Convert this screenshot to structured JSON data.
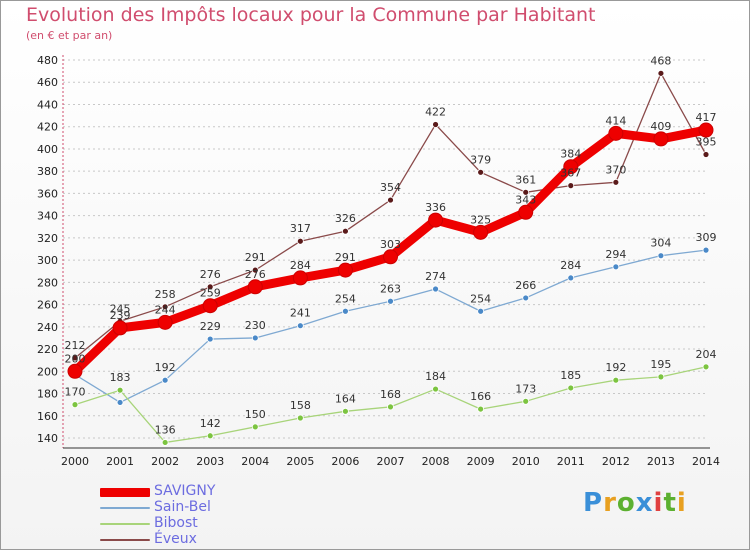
{
  "title": "Evolution des Impôts locaux pour la Commune par Habitant",
  "subtitle": "(en € et par an)",
  "logo_text": "Proxiti",
  "logo_colors": [
    "#3a8fd8",
    "#e8a020",
    "#5cb030",
    "#3a8fd8",
    "#e04040",
    "#5cb030",
    "#e8a020"
  ],
  "chart_data": {
    "type": "line",
    "title": "Evolution des Impôts locaux pour la Commune par Habitant",
    "subtitle": "(en € et par an)",
    "x": [
      2000,
      2001,
      2002,
      2003,
      2004,
      2005,
      2006,
      2007,
      2008,
      2009,
      2010,
      2011,
      2012,
      2013,
      2014
    ],
    "ylim": [
      120,
      480
    ],
    "yticks": [
      140,
      160,
      180,
      200,
      220,
      240,
      260,
      280,
      300,
      320,
      340,
      360,
      380,
      400,
      420,
      440,
      460,
      480
    ],
    "grid": "horizontal-dashed",
    "legend_position": "bottom-left",
    "series": [
      {
        "name": "SAVIGNY",
        "color": "#ee0000",
        "marker_color": "#ee0000",
        "emphasis": true,
        "values": [
          200,
          239,
          244,
          259,
          276,
          284,
          291,
          303,
          336,
          325,
          343,
          384,
          414,
          409,
          417
        ],
        "labels": [
          "200",
          "239",
          "244",
          "259",
          "276",
          "284",
          "291",
          "303",
          "336",
          "325",
          "343",
          "384",
          "414",
          "409",
          "417"
        ]
      },
      {
        "name": "Sain-Bel",
        "color": "#7fa9d2",
        "marker_color": "#4a89c8",
        "values": [
          197,
          172,
          192,
          229,
          230,
          241,
          254,
          263,
          274,
          254,
          266,
          284,
          294,
          304,
          309
        ],
        "labels": [
          "",
          "",
          "192",
          "229",
          "230",
          "241",
          "254",
          "263",
          "274",
          "254",
          "266",
          "284",
          "294",
          "304",
          "309"
        ]
      },
      {
        "name": "Bibost",
        "color": "#a8d47a",
        "marker_color": "#7cc440",
        "values": [
          170,
          183,
          136,
          142,
          150,
          158,
          164,
          168,
          184,
          166,
          173,
          185,
          192,
          195,
          204
        ],
        "labels": [
          "170",
          "183",
          "136",
          "142",
          "150",
          "158",
          "164",
          "168",
          "184",
          "166",
          "173",
          "185",
          "192",
          "195",
          "204"
        ]
      },
      {
        "name": "Éveux",
        "color": "#8a4a4a",
        "marker_color": "#5a1a1a",
        "values": [
          212,
          245,
          258,
          276,
          291,
          317,
          326,
          354,
          422,
          379,
          361,
          367,
          370,
          468,
          395
        ],
        "labels": [
          "212",
          "245",
          "258",
          "276",
          "291",
          "317",
          "326",
          "354",
          "422",
          "379",
          "361",
          "367",
          "370",
          "468",
          "395"
        ]
      }
    ]
  }
}
